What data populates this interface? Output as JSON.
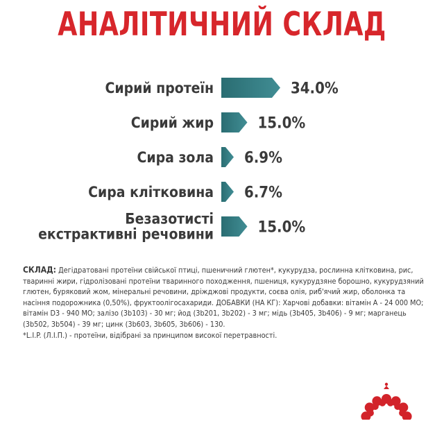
{
  "colors": {
    "title": "#d7262b",
    "bar": "#418d94",
    "bar_dark": "#2a6d72",
    "text": "#3a3a3a",
    "logo": "#d2232a"
  },
  "title": "АНАЛІТИЧНИЙ СКЛАД",
  "chart_data": {
    "type": "bar",
    "categories": [
      "Сирий протеїн",
      "Сирий жир",
      "Сира зола",
      "Сира клітковина",
      "Безазотисті екстрактивні речовини"
    ],
    "values": [
      34.0,
      15.0,
      6.9,
      6.7,
      15.0
    ],
    "value_labels": [
      "34.0%",
      "15.0%",
      "6.9%",
      "6.7%",
      "15.0%"
    ],
    "orientation": "horizontal",
    "unit": "%"
  },
  "composition": {
    "label": "СКЛАД:",
    "text": "Дегідратовані протеїни свійської птиці, пшеничний глютен*, кукурудза, рослинна клітковина, рис, тваринні жири, гідролізовані протеїни тваринного походження, пшениця, кукурудзяне борошно, кукурудзяний глютен, буряковий жом, мінеральні речовини, дріжджові продукти, соєва олія, риб'ячий жир, оболонка та насіння подорожника (0,50%), фруктоолігосахариди. ДОБАВКИ (НА КГ): Харчові добавки: вітамін А - 24 000 МО; вітамін D3 - 940 МО; залізо (3b103) - 30 мг; йод (3b201, 3b202) - 3 мг; мідь (3b405, 3b406) - 9 мг; марганець (3b502, 3b504) - 39 мг; цинк (3b603, 3b605, 3b606) - 130.",
    "footnote": "*L.I.P. (Л.І.П.) - протеїни, відібрані за принципом високої перетравності."
  },
  "logo": {
    "icon": "royal-crown-icon"
  }
}
